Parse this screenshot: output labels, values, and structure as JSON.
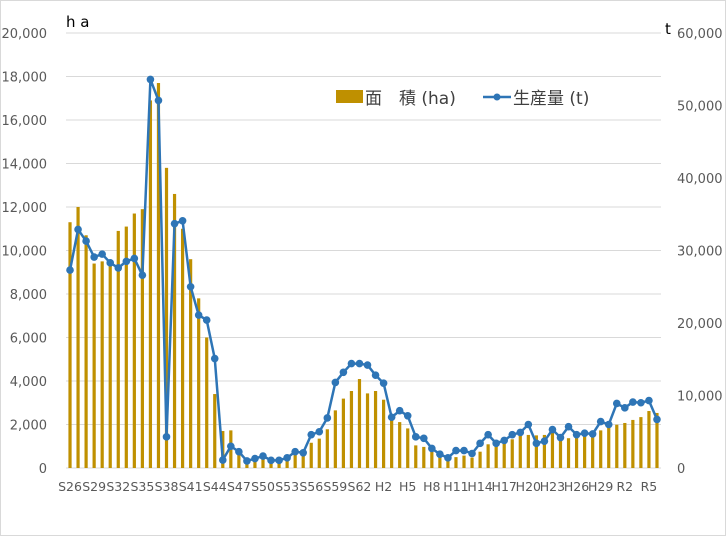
{
  "chart_data": {
    "type": "bar+line",
    "title": "",
    "left_axis": {
      "unit_label": "h a",
      "ylim": [
        0,
        20000
      ],
      "ticks": [
        "0",
        "2,000",
        "4,000",
        "6,000",
        "8,000",
        "10,000",
        "12,000",
        "14,000",
        "16,000",
        "18,000",
        "20,000"
      ]
    },
    "right_axis": {
      "unit_label": "t",
      "ylim": [
        0,
        60000
      ],
      "ticks": [
        "0",
        "10,000",
        "20,000",
        "30,000",
        "40,000",
        "50,000",
        "60,000"
      ]
    },
    "legend": {
      "position": "upper-right-inside",
      "entries": [
        "面　積 (ha)",
        "生産量 (t)"
      ]
    },
    "grid": true,
    "colors": {
      "bar": "#BF9000",
      "line": "#2E75B6",
      "grid": "#D9D9D9",
      "axis": "#D9D9D9"
    },
    "x_tick_labels": [
      "S26",
      "S29",
      "S32",
      "S35",
      "S38",
      "S41",
      "S44",
      "S47",
      "S50",
      "S53",
      "S56",
      "S59",
      "S62",
      "H2",
      "H5",
      "H8",
      "H11",
      "H14",
      "H17",
      "H20",
      "H23",
      "H26",
      "H29",
      "R2",
      "R5"
    ],
    "categories": [
      "S26",
      "S27",
      "S28",
      "S29",
      "S30",
      "S31",
      "S32",
      "S33",
      "S34",
      "S35",
      "S36",
      "S37",
      "S38",
      "S39",
      "S40",
      "S41",
      "S42",
      "S43",
      "S44",
      "S45",
      "S46",
      "S47",
      "S48",
      "S49",
      "S50",
      "S51",
      "S52",
      "S53",
      "S54",
      "S55",
      "S56",
      "S57",
      "S58",
      "S59",
      "S60",
      "S61",
      "S62",
      "S63",
      "H1",
      "H2",
      "H3",
      "H4",
      "H5",
      "H6",
      "H7",
      "H8",
      "H9",
      "H10",
      "H11",
      "H12",
      "H13",
      "H14",
      "H15",
      "H16",
      "H17",
      "H18",
      "H19",
      "H20",
      "H21",
      "H22",
      "H23",
      "H24",
      "H25",
      "H26",
      "H27",
      "H28",
      "H29",
      "H30",
      "R1",
      "R2",
      "R3",
      "R4",
      "R5",
      "R6"
    ],
    "series": [
      {
        "name": "面　積 (ha)",
        "type": "bar",
        "axis": "left",
        "values": [
          11300,
          12000,
          10700,
          9400,
          9500,
          9400,
          10900,
          11100,
          11700,
          11900,
          16900,
          17700,
          13800,
          12600,
          11000,
          9600,
          7800,
          6000,
          3400,
          1700,
          1730,
          640,
          300,
          300,
          400,
          300,
          300,
          400,
          600,
          550,
          1160,
          1350,
          1780,
          2650,
          3190,
          3540,
          4090,
          3430,
          3540,
          3140,
          2200,
          2110,
          1820,
          1040,
          970,
          780,
          500,
          320,
          500,
          570,
          480,
          750,
          1090,
          1120,
          1370,
          1320,
          1580,
          1520,
          1500,
          1520,
          1620,
          1470,
          1370,
          1390,
          1470,
          1620,
          1730,
          2000,
          1990,
          2070,
          2210,
          2340,
          2620,
          2530
        ]
      },
      {
        "name": "生産量 (t)",
        "type": "line",
        "axis": "right",
        "values": [
          27300,
          32900,
          31300,
          29100,
          29500,
          28300,
          27600,
          28500,
          28900,
          26600,
          53600,
          50700,
          4300,
          33700,
          34100,
          25000,
          21100,
          20400,
          15100,
          1100,
          3000,
          2250,
          970,
          1300,
          1650,
          1060,
          1060,
          1400,
          2250,
          2100,
          4600,
          5000,
          6900,
          11800,
          13200,
          14400,
          14400,
          14200,
          12800,
          11700,
          7000,
          7900,
          7200,
          4300,
          4100,
          2700,
          1900,
          1400,
          2400,
          2400,
          2000,
          3400,
          4600,
          3400,
          3800,
          4600,
          4900,
          6000,
          3400,
          3700,
          5300,
          4200,
          5700,
          4600,
          4800,
          4700,
          6400,
          6000,
          8900,
          8300,
          9100,
          9000,
          9300,
          6700
        ]
      }
    ]
  }
}
